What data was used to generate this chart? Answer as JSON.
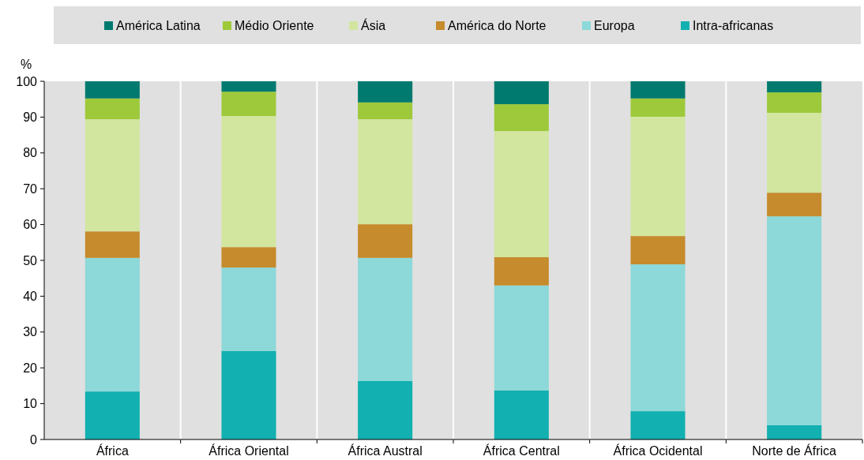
{
  "chart_data": {
    "type": "bar",
    "stacked": true,
    "ylabel": "%",
    "categories": [
      "África",
      "África Oriental",
      "África Austral",
      "África Central",
      "África Ocidental",
      "Norte de África"
    ],
    "series": [
      {
        "name": "Intra-africanas",
        "color": "#12b0b0",
        "values": [
          13.4,
          24.7,
          16.3,
          13.7,
          7.9,
          4.0
        ]
      },
      {
        "name": "Europa",
        "color": "#8dd8d8",
        "values": [
          37.3,
          23.3,
          34.4,
          29.3,
          41.0,
          58.3
        ]
      },
      {
        "name": "América do Norte",
        "color": "#c68b2c",
        "values": [
          7.4,
          5.7,
          9.4,
          7.9,
          7.9,
          6.6
        ]
      },
      {
        "name": "Ásia",
        "color": "#d2e6a0",
        "values": [
          31.3,
          36.6,
          29.3,
          35.2,
          33.3,
          22.3
        ]
      },
      {
        "name": "Médio Oriente",
        "color": "#9dc93a",
        "values": [
          5.8,
          6.8,
          4.7,
          7.5,
          5.1,
          5.7
        ]
      },
      {
        "name": "América Latina",
        "color": "#007a6e",
        "values": [
          4.8,
          2.9,
          5.9,
          6.4,
          4.8,
          3.1
        ]
      }
    ],
    "ylim": [
      0,
      100
    ],
    "yticks": [
      0,
      10,
      20,
      30,
      40,
      50,
      60,
      70,
      80,
      90,
      100
    ],
    "grid": false,
    "legend": "top"
  }
}
